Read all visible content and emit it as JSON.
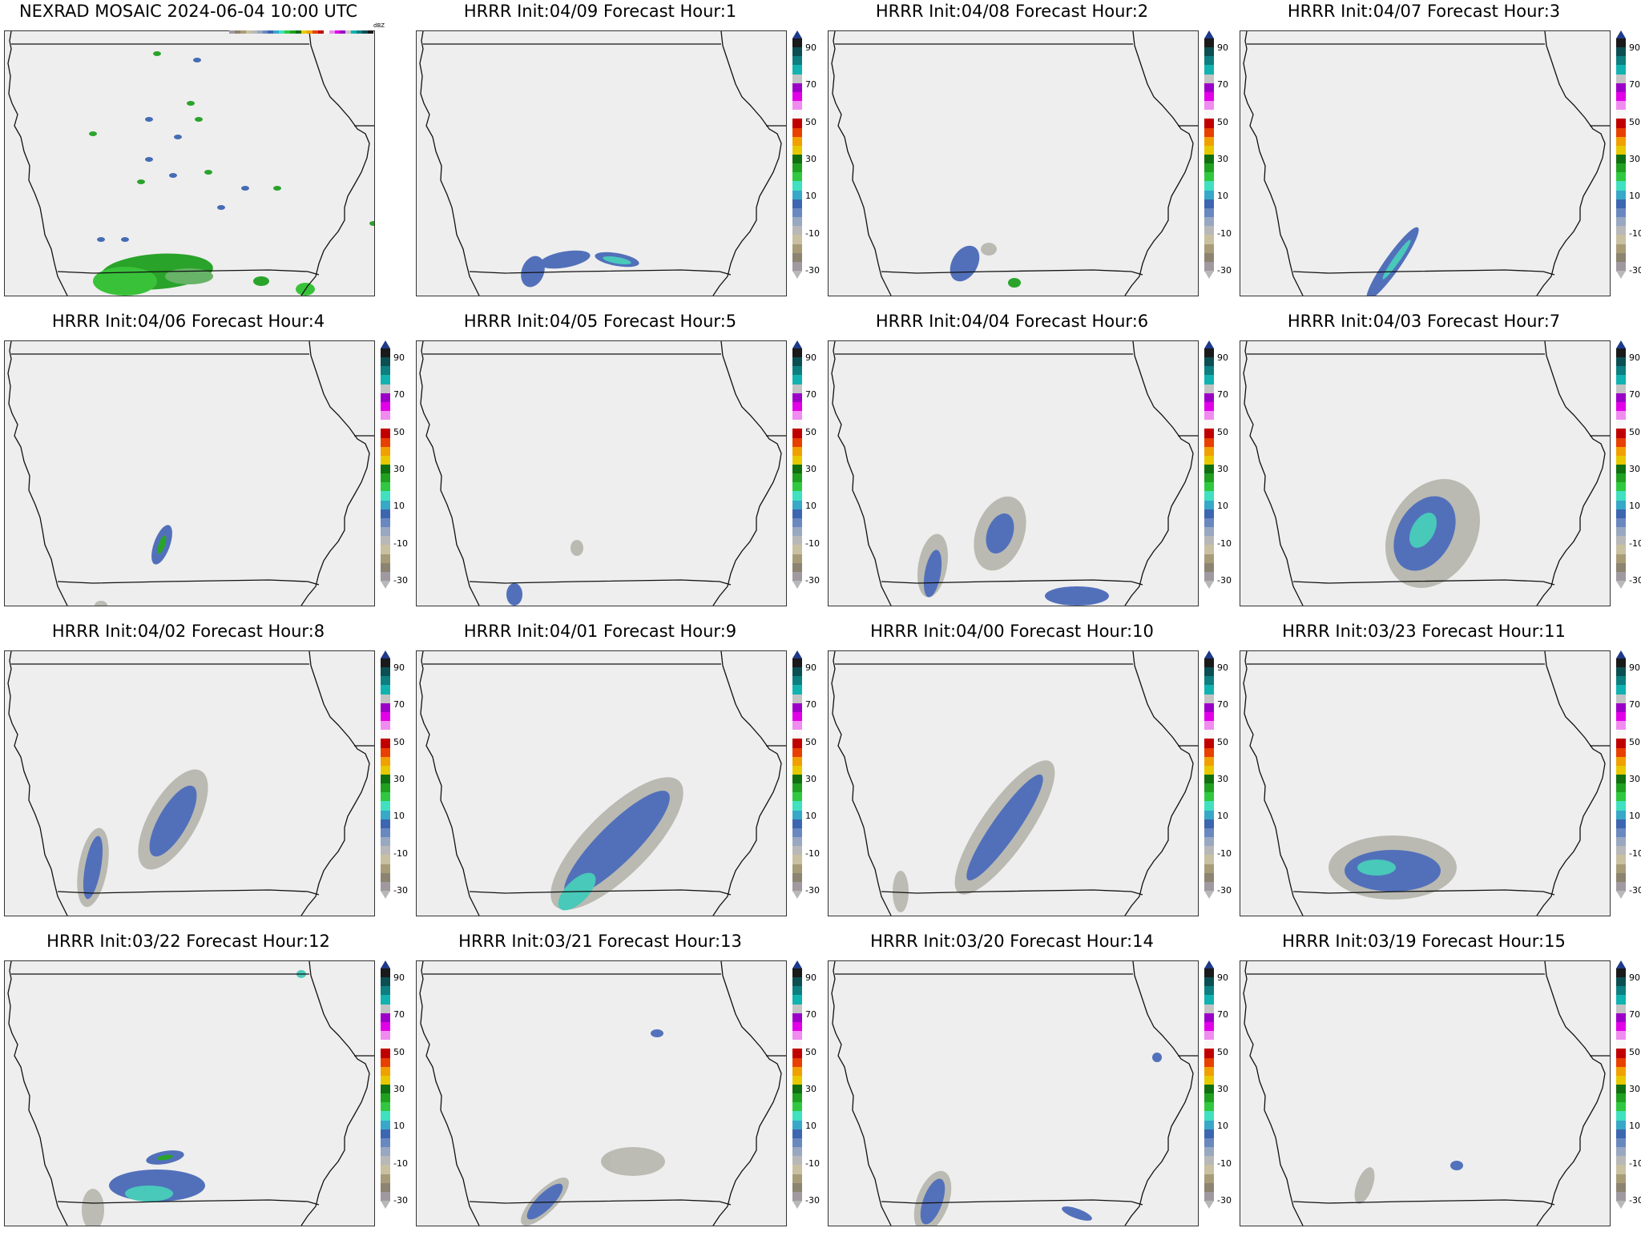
{
  "colorbar": {
    "ticks": [
      "90",
      "70",
      "50",
      "30",
      "10",
      "-10",
      "-30"
    ],
    "colors": [
      "#1a1a1a",
      "#0b4f52",
      "#0d7f80",
      "#11b2b0",
      "#c4c4c4",
      "#9c00c8",
      "#e200e8",
      "#f08cf0",
      "#f8f8f8",
      "#c00000",
      "#e84000",
      "#f0a000",
      "#e8c800",
      "#107010",
      "#20a020",
      "#30c840",
      "#40e0c0",
      "#38a8c8",
      "#3d66b0",
      "#6a88c0",
      "#98a8c0",
      "#b8b8b8",
      "#c8c0a0",
      "#a89c78",
      "#8c8470",
      "#a09aa0"
    ],
    "unit": "dBZ"
  },
  "panels": [
    {
      "title": "NEXRAD MOSAIC 2024-06-04 10:00 UTC",
      "type": "obs"
    },
    {
      "title": "HRRR Init:04/09 Forecast Hour:1"
    },
    {
      "title": "HRRR Init:04/08 Forecast Hour:2"
    },
    {
      "title": "HRRR Init:04/07 Forecast Hour:3"
    },
    {
      "title": "HRRR Init:04/06 Forecast Hour:4"
    },
    {
      "title": "HRRR Init:04/05 Forecast Hour:5"
    },
    {
      "title": "HRRR Init:04/04 Forecast Hour:6"
    },
    {
      "title": "HRRR Init:04/03 Forecast Hour:7"
    },
    {
      "title": "HRRR Init:04/02 Forecast Hour:8"
    },
    {
      "title": "HRRR Init:04/01 Forecast Hour:9"
    },
    {
      "title": "HRRR Init:04/00 Forecast Hour:10"
    },
    {
      "title": "HRRR Init:03/23 Forecast Hour:11"
    },
    {
      "title": "HRRR Init:03/22 Forecast Hour:12"
    },
    {
      "title": "HRRR Init:03/21 Forecast Hour:13"
    },
    {
      "title": "HRRR Init:03/20 Forecast Hour:14"
    },
    {
      "title": "HRRR Init:03/19 Forecast Hour:15"
    }
  ]
}
